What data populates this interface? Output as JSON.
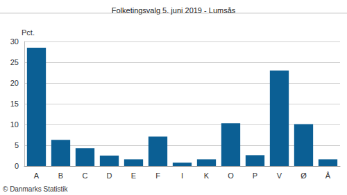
{
  "chart_data": {
    "type": "bar",
    "title": "Folketingsvalg 5. juni 2019 - Lumsås",
    "y_label": "Pct.",
    "annotation": "© Danmarks Statistik",
    "categories": [
      "A",
      "B",
      "C",
      "D",
      "E",
      "F",
      "I",
      "K",
      "O",
      "P",
      "V",
      "Ø",
      "Å"
    ],
    "values": [
      28.5,
      6.3,
      4.3,
      2.5,
      1.6,
      7.1,
      0.8,
      1.6,
      10.3,
      2.6,
      23.0,
      10.1,
      1.6
    ],
    "color": "#0b5f94",
    "ylim": [
      0,
      30
    ],
    "yticks": [
      0,
      5,
      10,
      15,
      20,
      25,
      30
    ],
    "grid": true
  }
}
